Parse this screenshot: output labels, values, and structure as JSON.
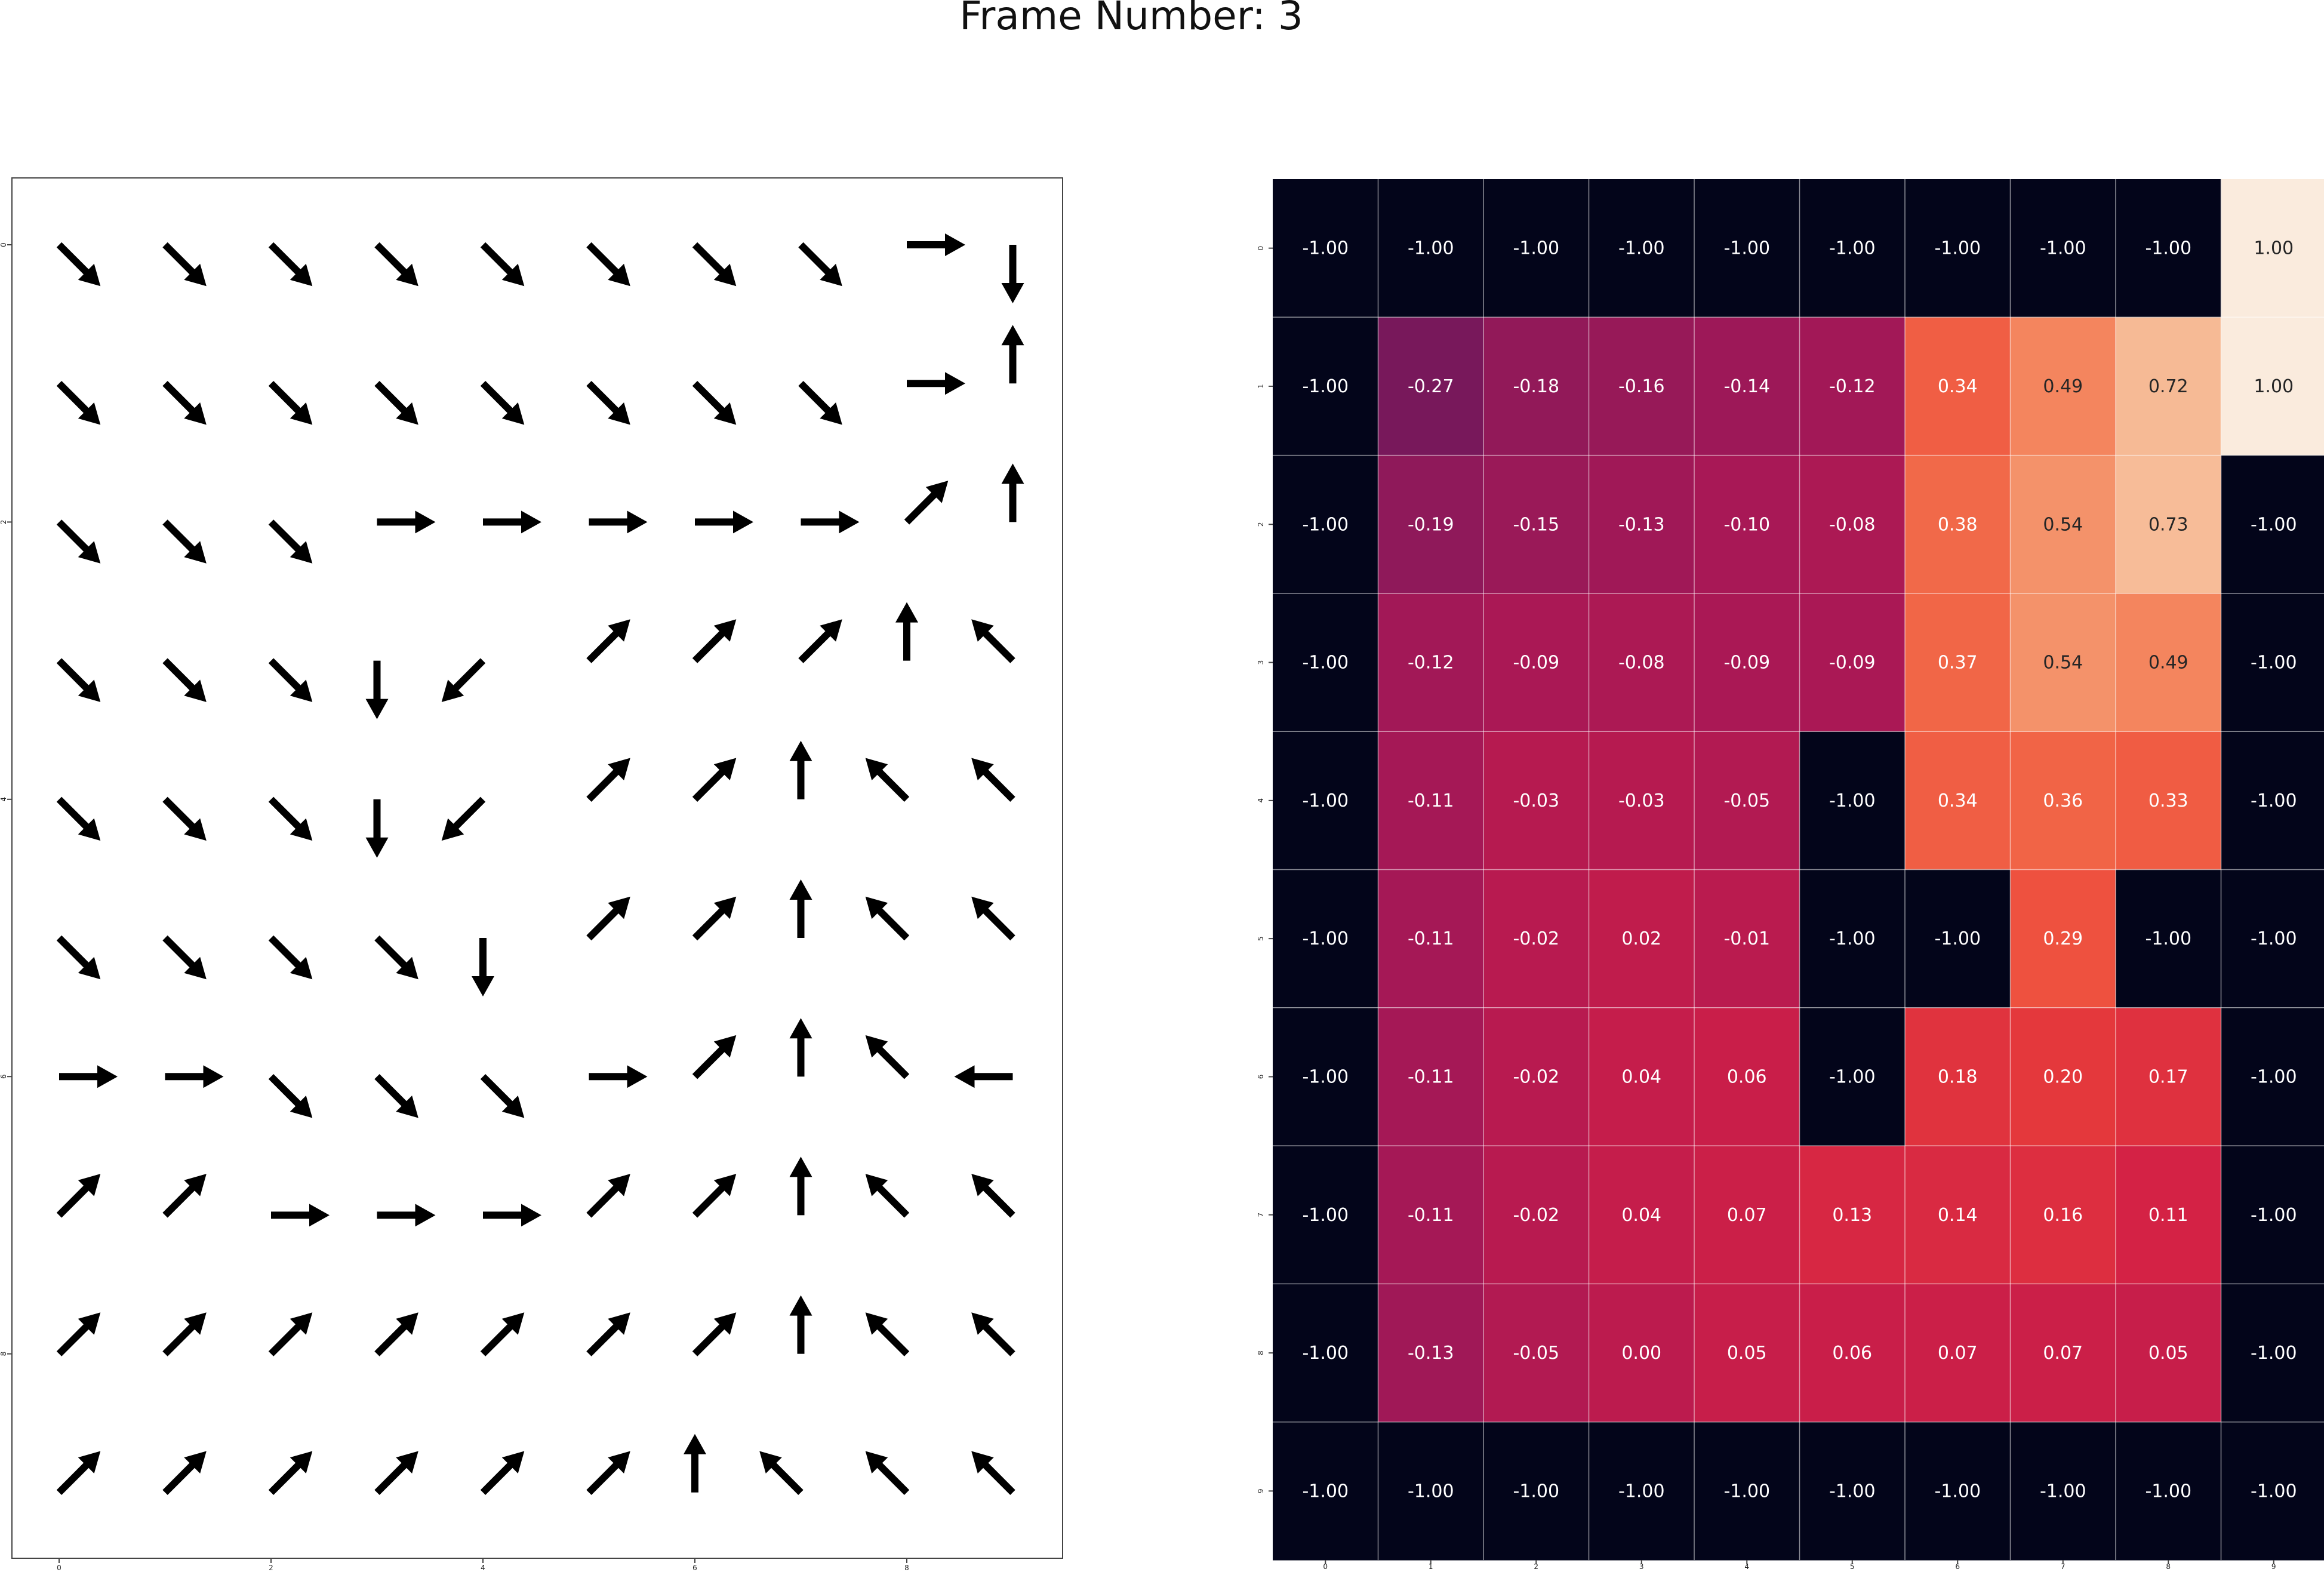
{
  "title": "Frame Number: 3",
  "chart_data": [
    {
      "type": "quiver",
      "rows": 10,
      "cols": 10,
      "xticks": [
        "0",
        "2",
        "4",
        "6",
        "8"
      ],
      "yticks": [
        "0",
        "2",
        "4",
        "6",
        "8"
      ],
      "directions": [
        [
          "SE",
          "SE",
          "SE",
          "SE",
          "SE",
          "SE",
          "SE",
          "SE",
          "E",
          "S"
        ],
        [
          "SE",
          "SE",
          "SE",
          "SE",
          "SE",
          "SE",
          "SE",
          "SE",
          "E",
          "N"
        ],
        [
          "SE",
          "SE",
          "SE",
          "E",
          "E",
          "E",
          "E",
          "E",
          "NE",
          "N"
        ],
        [
          "SE",
          "SE",
          "SE",
          "S",
          "SW",
          "NE",
          "NE",
          "NE",
          "N",
          "NW"
        ],
        [
          "SE",
          "SE",
          "SE",
          "S",
          "SW",
          "NE",
          "NE",
          "N",
          "NW",
          "NW"
        ],
        [
          "SE",
          "SE",
          "SE",
          "SE",
          "S",
          "NE",
          "NE",
          "N",
          "NW",
          "NW"
        ],
        [
          "E",
          "E",
          "SE",
          "SE",
          "SE",
          "E",
          "NE",
          "N",
          "NW",
          "W"
        ],
        [
          "NE",
          "NE",
          "E",
          "E",
          "E",
          "NE",
          "NE",
          "N",
          "NW",
          "NW"
        ],
        [
          "NE",
          "NE",
          "NE",
          "NE",
          "NE",
          "NE",
          "NE",
          "N",
          "NW",
          "NW"
        ],
        [
          "NE",
          "NE",
          "NE",
          "NE",
          "NE",
          "NE",
          "N",
          "NW",
          "NW",
          "NW"
        ]
      ],
      "arrow_color": "#000000"
    },
    {
      "type": "heatmap",
      "rows": 10,
      "cols": 10,
      "xticks": [
        "0",
        "1",
        "2",
        "3",
        "4",
        "5",
        "6",
        "7",
        "8",
        "9"
      ],
      "yticks": [
        "0",
        "1",
        "2",
        "3",
        "4",
        "5",
        "6",
        "7",
        "8",
        "9"
      ],
      "vmin": -1.0,
      "vmax": 1.0,
      "colormap": "rocket",
      "values": [
        [
          -1.0,
          -1.0,
          -1.0,
          -1.0,
          -1.0,
          -1.0,
          -1.0,
          -1.0,
          -1.0,
          1.0
        ],
        [
          -1.0,
          -0.27,
          -0.18,
          -0.16,
          -0.14,
          -0.12,
          0.34,
          0.49,
          0.72,
          1.0
        ],
        [
          -1.0,
          -0.19,
          -0.15,
          -0.13,
          -0.1,
          -0.08,
          0.38,
          0.54,
          0.73,
          -1.0
        ],
        [
          -1.0,
          -0.12,
          -0.09,
          -0.08,
          -0.09,
          -0.09,
          0.37,
          0.54,
          0.49,
          -1.0
        ],
        [
          -1.0,
          -0.11,
          -0.03,
          -0.03,
          -0.05,
          -1.0,
          0.34,
          0.36,
          0.33,
          -1.0
        ],
        [
          -1.0,
          -0.11,
          -0.02,
          0.02,
          -0.01,
          -1.0,
          -1.0,
          0.29,
          -1.0,
          -1.0
        ],
        [
          -1.0,
          -0.11,
          -0.02,
          0.04,
          0.06,
          -1.0,
          0.18,
          0.2,
          0.17,
          -1.0
        ],
        [
          -1.0,
          -0.11,
          -0.02,
          0.04,
          0.07,
          0.13,
          0.14,
          0.16,
          0.11,
          -1.0
        ],
        [
          -1.0,
          -0.13,
          -0.05,
          0.0,
          0.05,
          0.06,
          0.07,
          0.07,
          0.05,
          -1.0
        ],
        [
          -1.0,
          -1.0,
          -1.0,
          -1.0,
          -1.0,
          -1.0,
          -1.0,
          -1.0,
          -1.0,
          -1.0
        ]
      ]
    }
  ]
}
